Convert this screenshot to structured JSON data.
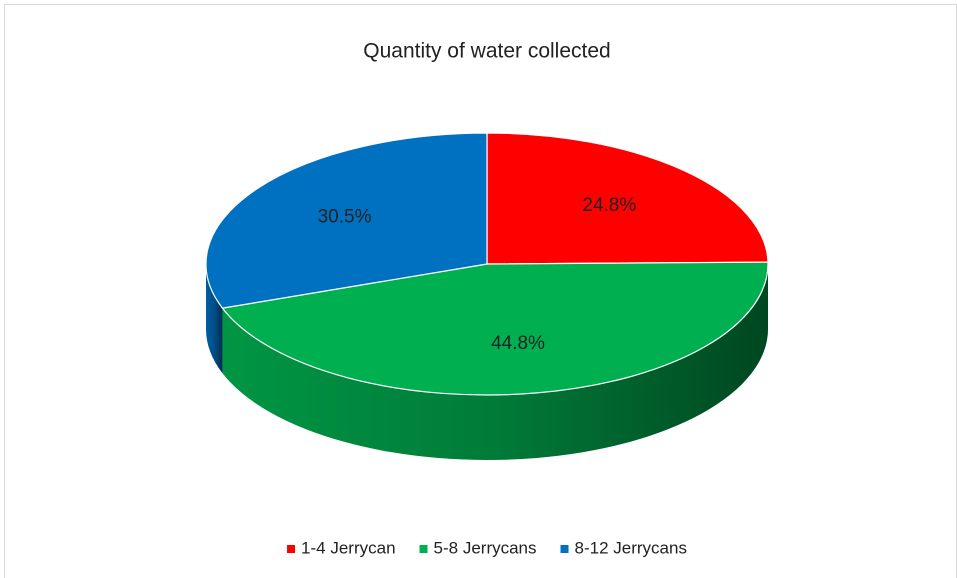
{
  "chart_data": {
    "type": "pie",
    "title": "Quantity of water collected",
    "categories": [
      "1-4 Jerrycan",
      "5-8 Jerrycans",
      "8-12 Jerrycans"
    ],
    "values": [
      24.8,
      44.8,
      30.5
    ],
    "value_labels": [
      "24.8%",
      "44.8%",
      "30.5%"
    ],
    "colors": [
      "#ff0000",
      "#00b050",
      "#0070c0"
    ],
    "legend": "bottom"
  }
}
